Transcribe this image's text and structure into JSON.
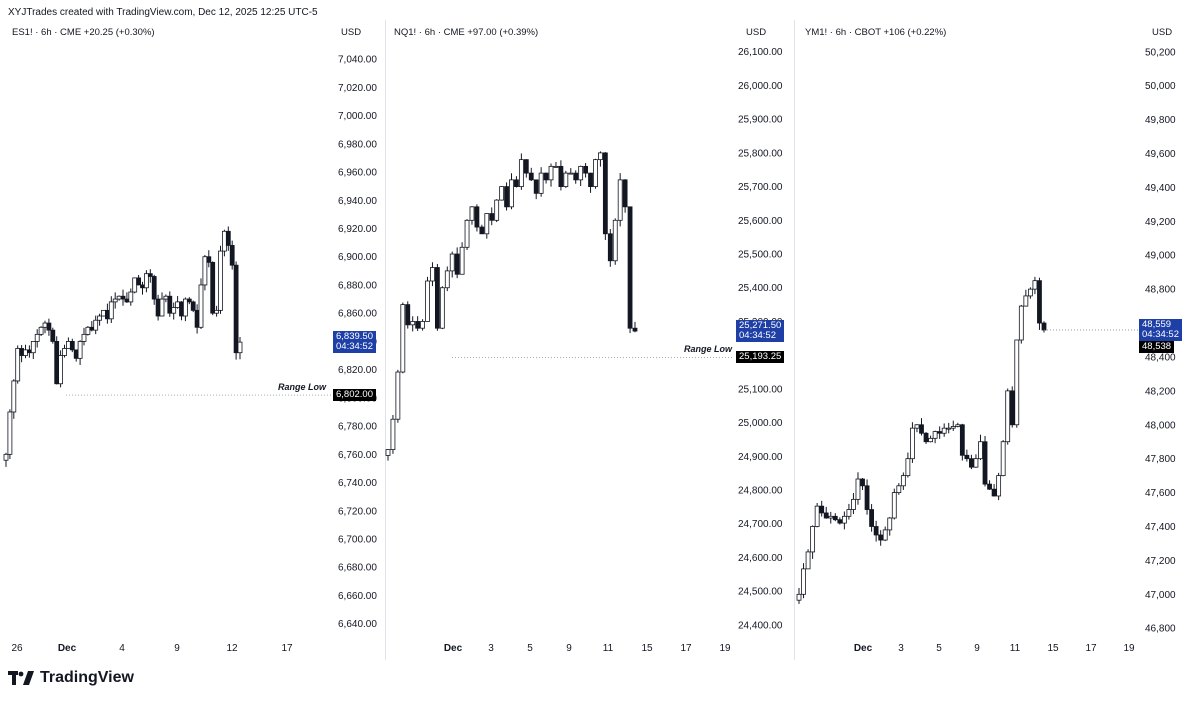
{
  "header": {
    "credit": "XYJTrades created with TradingView.com, Dec 12, 2025 12:25 UTC-5"
  },
  "footer": {
    "brand": "TradingView"
  },
  "chart_data": [
    {
      "type": "candlestick",
      "symbol_label": "ES1! · 6h · CME  +20.25 (+0.30%)",
      "currency": "USD",
      "y_ticks": [
        "7,040.00",
        "7,020.00",
        "7,000.00",
        "6,980.00",
        "6,960.00",
        "6,940.00",
        "6,920.00",
        "6,900.00",
        "6,880.00",
        "6,860.00",
        "6,840.00",
        "6,820.00",
        "6,800.00",
        "6,780.00",
        "6,760.00",
        "6,740.00",
        "6,720.00",
        "6,700.00",
        "6,680.00",
        "6,660.00",
        "6,640.00"
      ],
      "ylim": [
        6632,
        7050
      ],
      "x_ticks": [
        {
          "label": "26",
          "bold": false
        },
        {
          "label": "Dec",
          "bold": true
        },
        {
          "label": "4",
          "bold": false
        },
        {
          "label": "9",
          "bold": false
        },
        {
          "label": "12",
          "bold": false
        },
        {
          "label": "17",
          "bold": false
        }
      ],
      "last_price": "6,839.50",
      "countdown": "04:34:52",
      "range_low_label": "Range Low",
      "range_low_value": "6,802.00",
      "range_low": 6802,
      "closes": [
        6760,
        6790,
        6812,
        6835,
        6830,
        6834,
        6832,
        6840,
        6845,
        6850,
        6853,
        6848,
        6840,
        6810,
        6830,
        6835,
        6840,
        6834,
        6828,
        6840,
        6845,
        6850,
        6848,
        6855,
        6858,
        6862,
        6856,
        6868,
        6870,
        6872,
        6870,
        6868,
        6875,
        6885,
        6880,
        6878,
        6888,
        6886,
        6870,
        6858,
        6870,
        6872,
        6860,
        6864,
        6868,
        6858,
        6870,
        6868,
        6862,
        6850,
        6880,
        6900,
        6896,
        6860,
        6862,
        6904,
        6918,
        6908,
        6894,
        6832,
        6839.5
      ]
    },
    {
      "type": "candlestick",
      "symbol_label": "NQ1! · 6h · CME  +97.00 (+0.39%)",
      "currency": "USD",
      "y_ticks": [
        "26,100.00",
        "26,000.00",
        "25,900.00",
        "25,800.00",
        "25,700.00",
        "25,600.00",
        "25,500.00",
        "25,400.00",
        "25,300.00",
        "25,200.00",
        "25,100.00",
        "25,000.00",
        "24,900.00",
        "24,800.00",
        "24,700.00",
        "24,600.00",
        "24,500.00",
        "24,400.00"
      ],
      "ylim": [
        24370,
        26120
      ],
      "x_ticks": [
        {
          "label": "Dec",
          "bold": true
        },
        {
          "label": "3",
          "bold": false
        },
        {
          "label": "5",
          "bold": false
        },
        {
          "label": "9",
          "bold": false
        },
        {
          "label": "11",
          "bold": false
        },
        {
          "label": "15",
          "bold": false
        },
        {
          "label": "17",
          "bold": false
        },
        {
          "label": "19",
          "bold": false
        }
      ],
      "last_price": "25,271.50",
      "countdown": "04:34:52",
      "range_low_label": "Range Low",
      "range_low_value": "25,193.25",
      "range_low": 25193.25,
      "closes": [
        24920,
        25010,
        25150,
        25350,
        25290,
        25300,
        25280,
        25300,
        25420,
        25460,
        25280,
        25400,
        25450,
        25500,
        25440,
        25520,
        25600,
        25640,
        25580,
        25560,
        25620,
        25600,
        25660,
        25700,
        25640,
        25720,
        25700,
        25780,
        25740,
        25720,
        25680,
        25740,
        25720,
        25760,
        25760,
        25700,
        25740,
        25740,
        25720,
        25760,
        25740,
        25700,
        25780,
        25800,
        25560,
        25480,
        25600,
        25720,
        25640,
        25280,
        25271.5
      ]
    },
    {
      "type": "candlestick",
      "symbol_label": "YM1! · 6h · CBOT  +106 (+0.22%)",
      "currency": "USD",
      "y_ticks": [
        "50,200",
        "50,000",
        "49,800",
        "49,600",
        "49,400",
        "49,200",
        "49,000",
        "48,800",
        "48,600",
        "48,400",
        "48,200",
        "48,000",
        "47,800",
        "47,600",
        "47,400",
        "47,200",
        "47,000",
        "46,800"
      ],
      "ylim": [
        46760,
        50240
      ],
      "x_ticks": [
        {
          "label": "Dec",
          "bold": true
        },
        {
          "label": "3",
          "bold": false
        },
        {
          "label": "5",
          "bold": false
        },
        {
          "label": "9",
          "bold": false
        },
        {
          "label": "11",
          "bold": false
        },
        {
          "label": "15",
          "bold": false
        },
        {
          "label": "17",
          "bold": false
        },
        {
          "label": "19",
          "bold": false
        }
      ],
      "last_price": "48,559",
      "countdown": "04:34:52",
      "prev_price": "48,538",
      "last_value": 48559,
      "closes": [
        47000,
        47150,
        47250,
        47400,
        47520,
        47480,
        47450,
        47460,
        47440,
        47420,
        47460,
        47500,
        47560,
        47680,
        47640,
        47500,
        47400,
        47350,
        47320,
        47380,
        47450,
        47600,
        47640,
        47700,
        47800,
        47980,
        48000,
        47950,
        47900,
        47920,
        47960,
        47950,
        47980,
        47980,
        47990,
        48000,
        47820,
        47800,
        47750,
        47800,
        47900,
        47650,
        47620,
        47580,
        47700,
        47900,
        48200,
        48000,
        48500,
        48700,
        48760,
        48800,
        48850,
        48600,
        48559
      ]
    }
  ]
}
